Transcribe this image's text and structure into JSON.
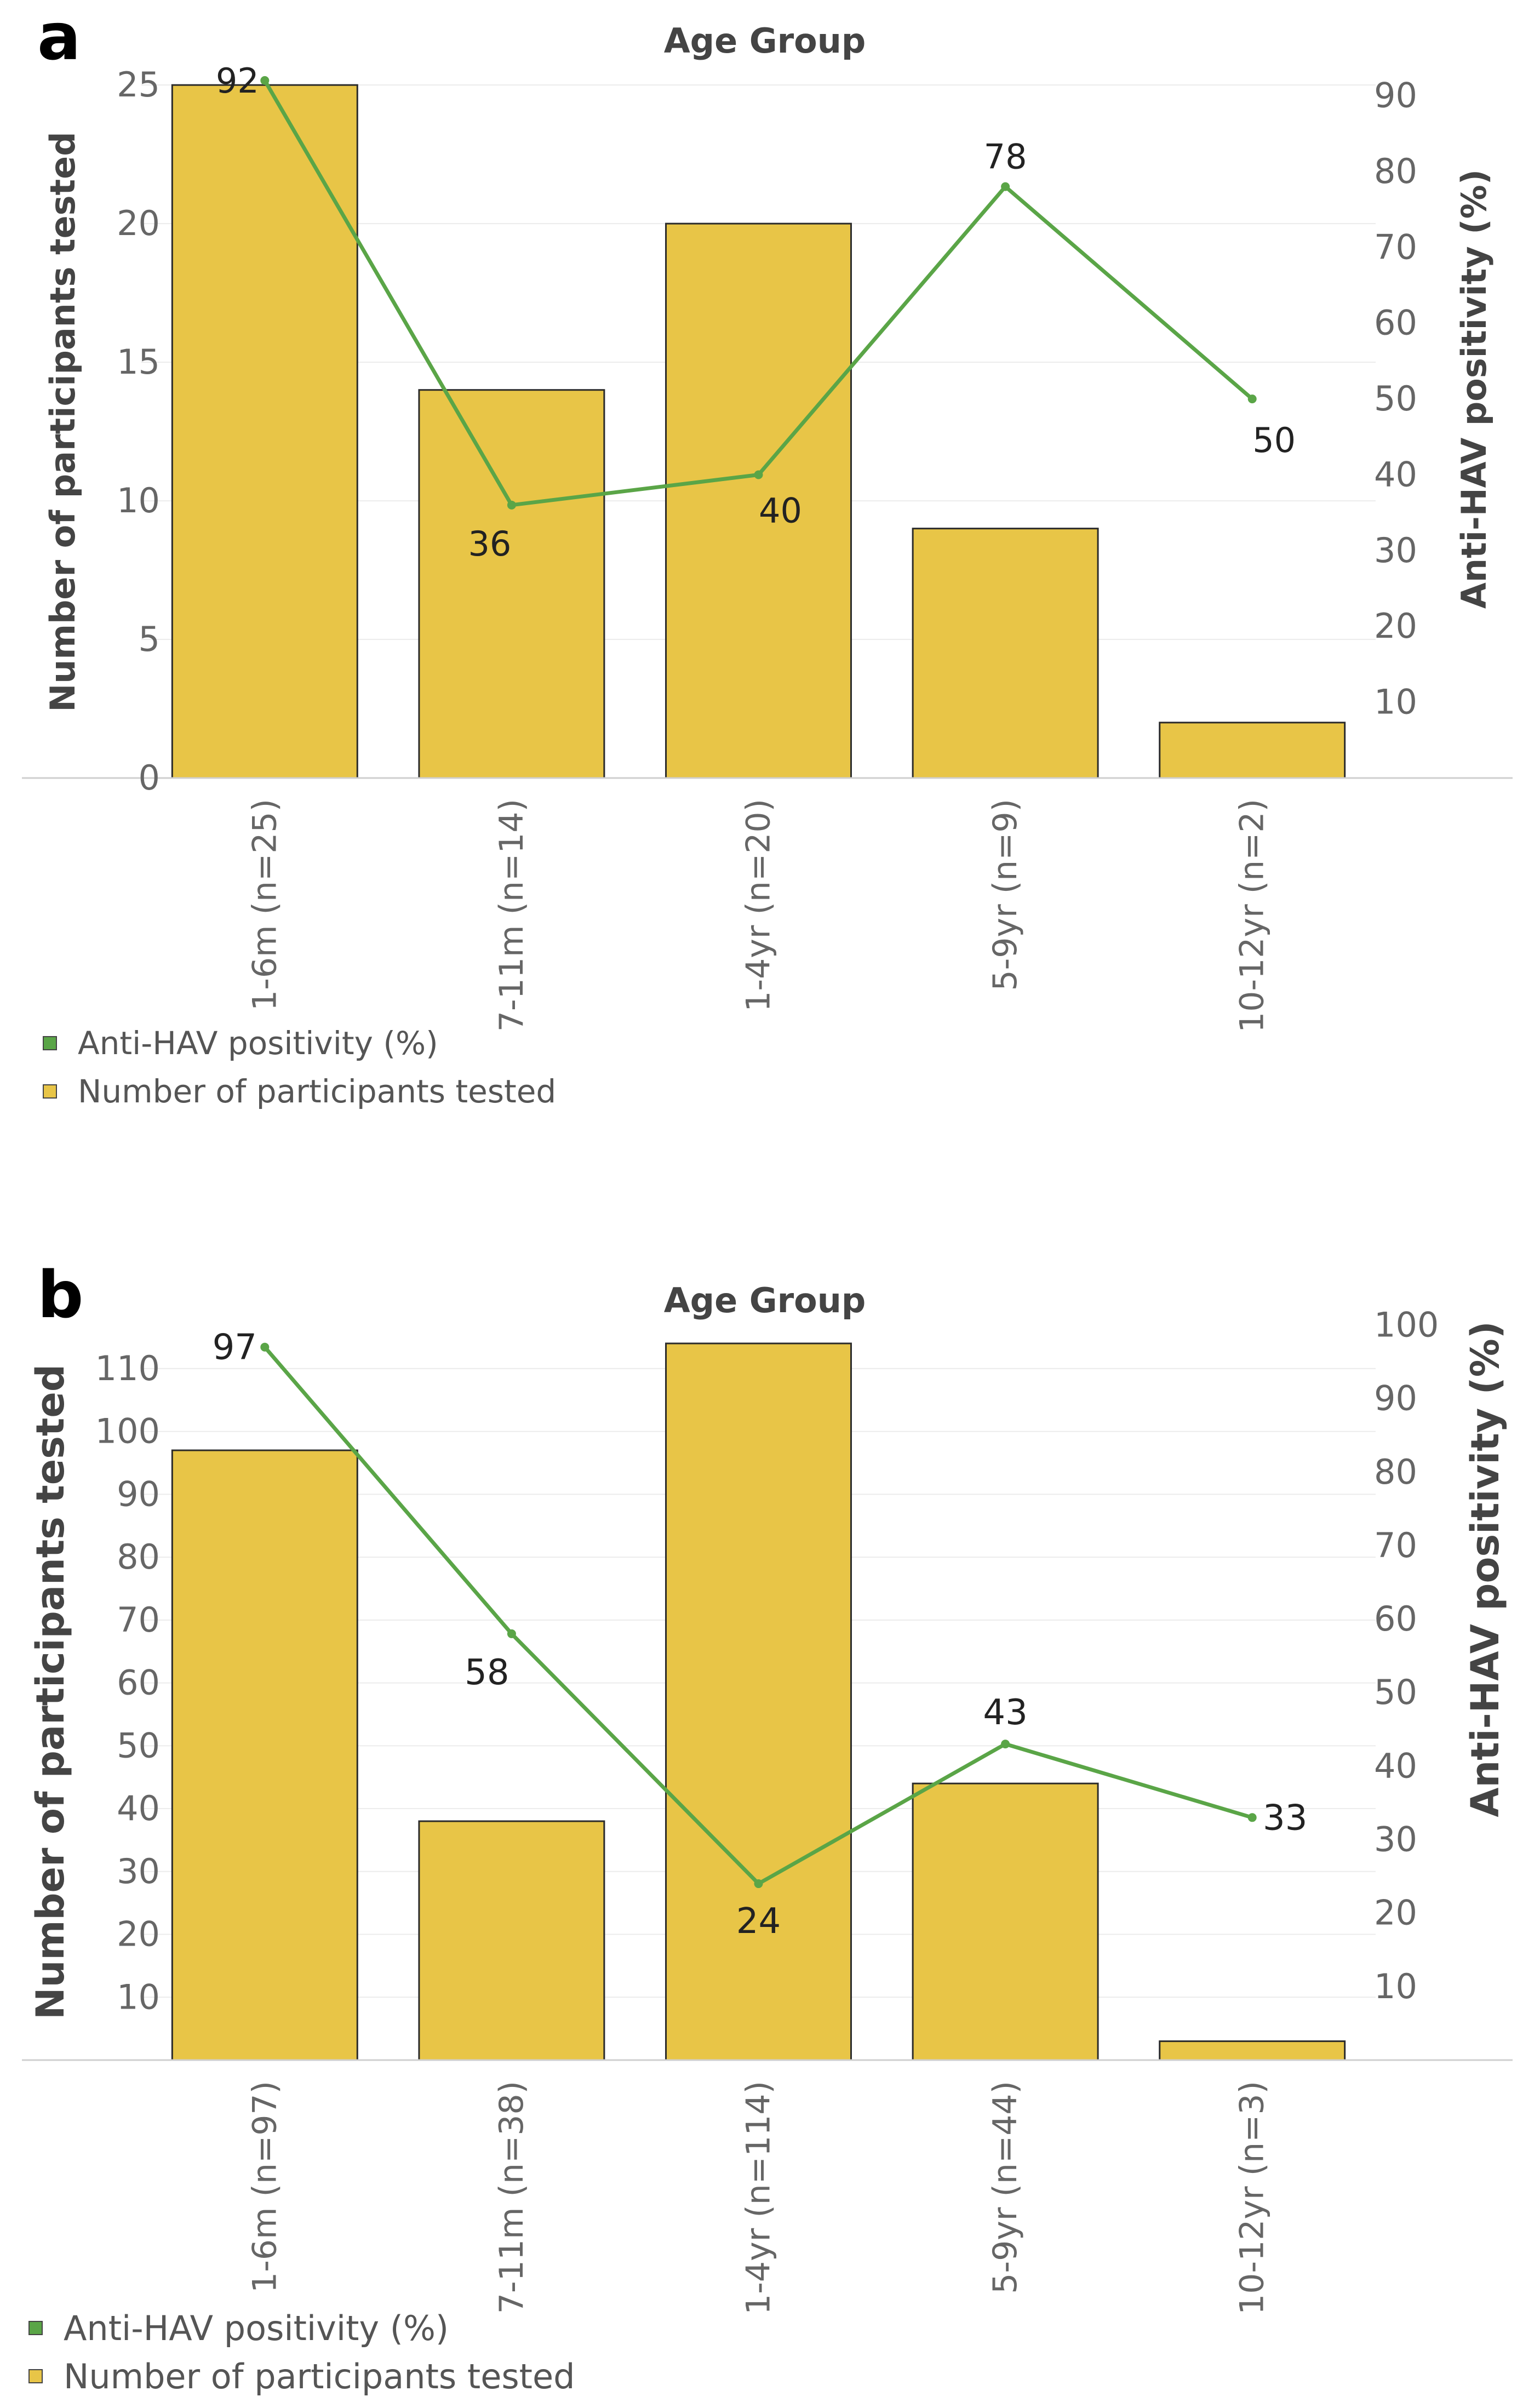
{
  "colors": {
    "bar": "#E8C547",
    "bar_stroke": "#2b2b2b",
    "line": "#5aa547",
    "grid": "#ececec",
    "axis_text": "#666666",
    "title_text": "#444444",
    "label_text": "#222222"
  },
  "panels": [
    {
      "letter": "a"
    },
    {
      "letter": "b"
    }
  ],
  "chart_data": [
    {
      "type": "bar",
      "panel": "a",
      "title": "Age Group",
      "categories": [
        "1-6m (n=25)",
        "7-11m (n=14)",
        "1-4yr (n=20)",
        "5-9yr (n=9)",
        "10-12yr (n=2)"
      ],
      "series": [
        {
          "name": "Number of participants tested",
          "type": "bar",
          "axis": "left",
          "values": [
            25,
            14,
            20,
            9,
            2
          ]
        },
        {
          "name": "Anti-HAV positivity (%)",
          "type": "line",
          "axis": "right",
          "values": [
            92,
            36,
            40,
            78,
            50
          ]
        }
      ],
      "ylabel": "Number of participants tested",
      "ylabel_right": "Anti-HAV positivity (%)",
      "ylim": [
        0,
        25.3
      ],
      "ylim_right": [
        0,
        92.5
      ],
      "yticks": [
        0,
        5,
        10,
        15,
        20,
        25
      ],
      "yticks_right": [
        10,
        20,
        30,
        40,
        50,
        60,
        70,
        80,
        90
      ],
      "data_labels": [
        "92",
        "36",
        "40",
        "78",
        "50"
      ],
      "legend": [
        "Anti-HAV positivity (%)",
        "Number of participants tested"
      ],
      "legend_position": "bottom-left",
      "grid": true
    },
    {
      "type": "bar",
      "panel": "b",
      "title": "Age Group",
      "categories": [
        "1-6m (n=97)",
        "7-11m (n=38)",
        "1-4yr (n=114)",
        "5-9yr (n=44)",
        "10-12yr (n=3)"
      ],
      "series": [
        {
          "name": "Number of participants tested",
          "type": "bar",
          "axis": "left",
          "values": [
            97,
            38,
            114,
            44,
            3
          ]
        },
        {
          "name": "Anti-HAV positivity (%)",
          "type": "line",
          "axis": "right",
          "values": [
            97,
            58,
            24,
            43,
            33
          ]
        }
      ],
      "ylabel": "Number of participants tested",
      "ylabel_right": "Anti-HAV positivity (%)",
      "ylim": [
        0,
        114
      ],
      "ylim_right": [
        0,
        97.5
      ],
      "yticks": [
        10,
        20,
        30,
        40,
        50,
        60,
        70,
        80,
        90,
        100,
        110
      ],
      "yticks_right": [
        10,
        20,
        30,
        40,
        50,
        60,
        70,
        80,
        90,
        100
      ],
      "data_labels": [
        "97",
        "58",
        "24",
        "43",
        "33"
      ],
      "legend": [
        "Anti-HAV positivity (%)",
        "Number of participants tested"
      ],
      "legend_position": "bottom-left",
      "grid": true
    }
  ]
}
